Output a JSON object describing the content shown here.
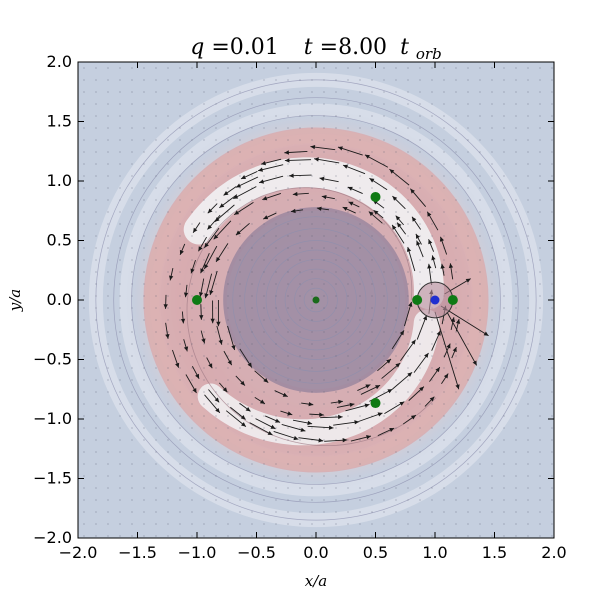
{
  "chart_data": {
    "type": "scatter",
    "title_parts": {
      "q_var": "q",
      "q_value": "=0.01",
      "t_var": "t",
      "t_value": "=8.00",
      "t_unit": "t",
      "t_unit_sub": "orb"
    },
    "xlabel": "x/a",
    "ylabel": "y/a",
    "xlim": [
      -2.0,
      2.0
    ],
    "ylim": [
      -2.0,
      2.0
    ],
    "xticks": [
      -2.0,
      -1.5,
      -1.0,
      -0.5,
      0.0,
      0.5,
      1.0,
      1.5,
      2.0
    ],
    "yticks": [
      -2.0,
      -1.5,
      -1.0,
      -0.5,
      0.0,
      0.5,
      1.0,
      1.5,
      2.0
    ],
    "xtick_labels": [
      "−2.0",
      "−1.5",
      "−1.0",
      "−0.5",
      "0.0",
      "0.5",
      "1.0",
      "1.5",
      "2.0"
    ],
    "ytick_labels": [
      "−2.0",
      "−1.5",
      "−1.0",
      "−0.5",
      "0.0",
      "0.5",
      "1.0",
      "1.5",
      "2.0"
    ],
    "grid": false,
    "background_color": "#c5cfdf",
    "colors": {
      "lagrange_points": "#0f7a14",
      "planet": "#1f2fd0",
      "star": "#1a6a1a",
      "gap": "#9f8aa0",
      "dense_ring": "#d9a7a9",
      "spiral_arm": "#f2f2f4",
      "arrows": "#1a1a1a"
    },
    "lagrange_points": [
      {
        "x": 0.5,
        "y": 0.866
      },
      {
        "x": 0.5,
        "y": -0.866
      },
      {
        "x": -1.0,
        "y": 0.0
      },
      {
        "x": 0.85,
        "y": 0.0
      },
      {
        "x": 1.15,
        "y": 0.0
      }
    ],
    "planet": {
      "x": 1.0,
      "y": 0.0
    },
    "star": {
      "x": 0.0,
      "y": 0.0
    },
    "hill_radius": 0.15,
    "gap_radius": 0.78
  }
}
